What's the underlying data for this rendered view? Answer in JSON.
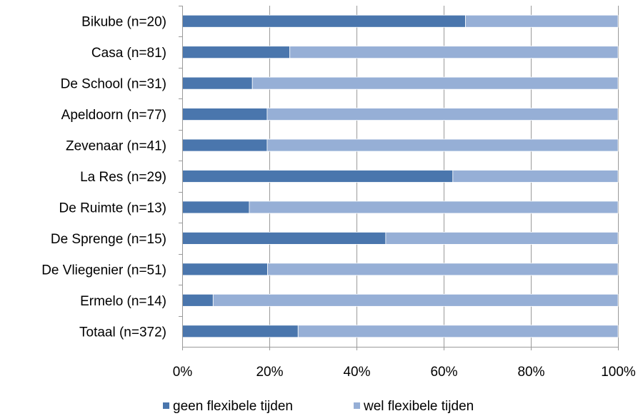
{
  "chart_data": {
    "type": "bar",
    "stacked": true,
    "orientation": "horizontal",
    "categories": [
      "Bikube (n=20)",
      "Casa (n=81)",
      "De School (n=31)",
      "Apeldoorn (n=77)",
      "Zevenaar (n=41)",
      "La Res (n=29)",
      "De Ruimte (n=13)",
      "De Sprenge (n=15)",
      "De Vliegenier (n=51)",
      "Ermelo (n=14)",
      "Totaal (n=372)"
    ],
    "series": [
      {
        "name": "geen flexibele tijden",
        "color": "#4a76ad",
        "values": [
          65,
          24.7,
          16.1,
          19.5,
          19.5,
          62.1,
          15.4,
          46.7,
          19.6,
          7.1,
          26.6
        ]
      },
      {
        "name": "wel flexibele tijden",
        "color": "#96afd6",
        "values": [
          35,
          75.3,
          83.9,
          80.5,
          80.5,
          37.9,
          84.6,
          53.3,
          80.4,
          92.9,
          73.4
        ]
      }
    ],
    "xlim": [
      0,
      100
    ],
    "xticks": [
      "0%",
      "20%",
      "40%",
      "60%",
      "80%",
      "100%"
    ],
    "grid": true,
    "legend_position": "bottom"
  }
}
